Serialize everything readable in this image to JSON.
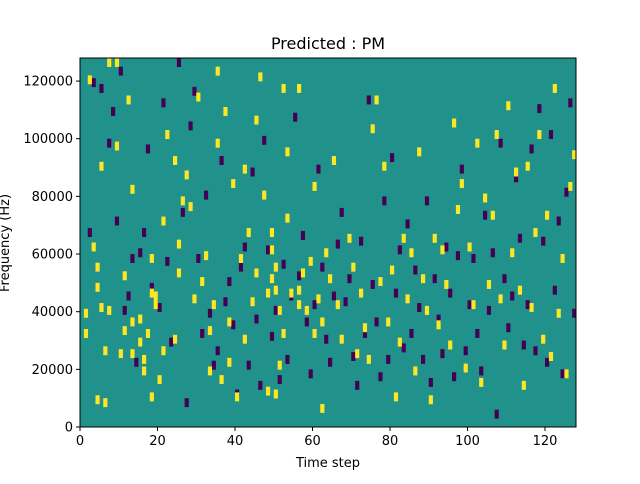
{
  "chart_data": {
    "type": "heatmap",
    "title": "Predicted : PM",
    "xlabel": "Time step",
    "ylabel": "Frequency (Hz)",
    "xlim": [
      0,
      128
    ],
    "ylim": [
      0,
      128000
    ],
    "x_ticks": [
      0,
      20,
      40,
      60,
      80,
      100,
      120
    ],
    "y_ticks": [
      0,
      20000,
      40000,
      60000,
      80000,
      100000,
      120000
    ],
    "x_tick_labels": [
      "0",
      "20",
      "40",
      "60",
      "80",
      "100",
      "120"
    ],
    "y_tick_labels": [
      "0",
      "20000",
      "40000",
      "60000",
      "80000",
      "100000",
      "120000"
    ],
    "grid": false,
    "value_levels": [
      -1,
      0,
      1
    ],
    "colors": {
      "background": "#21918c",
      "low": "#440154",
      "high": "#fde725"
    },
    "note_cells_high": [
      [
        1,
        33
      ],
      [
        1,
        40
      ],
      [
        2,
        121
      ],
      [
        3,
        63
      ],
      [
        4,
        56
      ],
      [
        4,
        49
      ],
      [
        4,
        10
      ],
      [
        5,
        42
      ],
      [
        5,
        91
      ],
      [
        6,
        27
      ],
      [
        6,
        9
      ],
      [
        7,
        41
      ],
      [
        7,
        127
      ],
      [
        9,
        127
      ],
      [
        9,
        98
      ],
      [
        10,
        26
      ],
      [
        11,
        53
      ],
      [
        11,
        34
      ],
      [
        12,
        114
      ],
      [
        13,
        26
      ],
      [
        13,
        83
      ],
      [
        13,
        37
      ],
      [
        15,
        30
      ],
      [
        15,
        38
      ],
      [
        16,
        24
      ],
      [
        16,
        20
      ],
      [
        17,
        33
      ],
      [
        18,
        47
      ],
      [
        18,
        59
      ],
      [
        18,
        11
      ],
      [
        19,
        43
      ],
      [
        19,
        46
      ],
      [
        20,
        17
      ],
      [
        21,
        72
      ],
      [
        21,
        27
      ],
      [
        22,
        102
      ],
      [
        24,
        93
      ],
      [
        24,
        31
      ],
      [
        25,
        54
      ],
      [
        25,
        64
      ],
      [
        26,
        79
      ],
      [
        27,
        88
      ],
      [
        28,
        77
      ],
      [
        29,
        45
      ],
      [
        30,
        115
      ],
      [
        31,
        51
      ],
      [
        32,
        60
      ],
      [
        33,
        34
      ],
      [
        33,
        20
      ],
      [
        34,
        43
      ],
      [
        35,
        124
      ],
      [
        35,
        99
      ],
      [
        36,
        17
      ],
      [
        37,
        110
      ],
      [
        38,
        37
      ],
      [
        38,
        23
      ],
      [
        39,
        85
      ],
      [
        40,
        11
      ],
      [
        41,
        59
      ],
      [
        42,
        90
      ],
      [
        42,
        31
      ],
      [
        43,
        68
      ],
      [
        44,
        44
      ],
      [
        45,
        54
      ],
      [
        45,
        107
      ],
      [
        46,
        122
      ],
      [
        47,
        81
      ],
      [
        48,
        47
      ],
      [
        48,
        13
      ],
      [
        49,
        62
      ],
      [
        49,
        52
      ],
      [
        49,
        68
      ],
      [
        50,
        56
      ],
      [
        50,
        48
      ],
      [
        50,
        12
      ],
      [
        51,
        41
      ],
      [
        51,
        22
      ],
      [
        52,
        33
      ],
      [
        52,
        118
      ],
      [
        53,
        73
      ],
      [
        53,
        96
      ],
      [
        54,
        47
      ],
      [
        56,
        48
      ],
      [
        56,
        43
      ],
      [
        56,
        118
      ],
      [
        57,
        54
      ],
      [
        58,
        41
      ],
      [
        59,
        58
      ],
      [
        60,
        84
      ],
      [
        60,
        33
      ],
      [
        61,
        45
      ],
      [
        62,
        37
      ],
      [
        62,
        7
      ],
      [
        63,
        61
      ],
      [
        64,
        52
      ],
      [
        65,
        93
      ],
      [
        66,
        43
      ],
      [
        67,
        31
      ],
      [
        69,
        66
      ],
      [
        70,
        56
      ],
      [
        71,
        26
      ],
      [
        72,
        47
      ],
      [
        73,
        35
      ],
      [
        74,
        24
      ],
      [
        75,
        104
      ],
      [
        76,
        114
      ],
      [
        77,
        51
      ],
      [
        78,
        91
      ],
      [
        79,
        37
      ],
      [
        80,
        55
      ],
      [
        81,
        11
      ],
      [
        82,
        30
      ],
      [
        83,
        66
      ],
      [
        84,
        45
      ],
      [
        85,
        61
      ],
      [
        86,
        20
      ],
      [
        87,
        96
      ],
      [
        88,
        52
      ],
      [
        89,
        41
      ],
      [
        90,
        10
      ],
      [
        91,
        66
      ],
      [
        92,
        36
      ],
      [
        93,
        62
      ],
      [
        94,
        50
      ],
      [
        95,
        29
      ],
      [
        96,
        106
      ],
      [
        97,
        76
      ],
      [
        98,
        85
      ],
      [
        99,
        21
      ],
      [
        100,
        63
      ],
      [
        101,
        43
      ],
      [
        102,
        99
      ],
      [
        103,
        16
      ],
      [
        104,
        80
      ],
      [
        105,
        50
      ],
      [
        106,
        74
      ],
      [
        107,
        102
      ],
      [
        108,
        45
      ],
      [
        109,
        29
      ],
      [
        110,
        112
      ],
      [
        111,
        61
      ],
      [
        112,
        89
      ],
      [
        113,
        48
      ],
      [
        114,
        15
      ],
      [
        115,
        91
      ],
      [
        116,
        42
      ],
      [
        117,
        68
      ],
      [
        118,
        102
      ],
      [
        119,
        31
      ],
      [
        120,
        74
      ],
      [
        121,
        25
      ],
      [
        122,
        118
      ],
      [
        123,
        40
      ],
      [
        124,
        59
      ],
      [
        125,
        19
      ],
      [
        126,
        84
      ],
      [
        127,
        95
      ]
    ],
    "note_cells_low": [
      [
        2,
        68
      ],
      [
        3,
        120
      ],
      [
        5,
        118
      ],
      [
        7,
        99
      ],
      [
        8,
        110
      ],
      [
        9,
        72
      ],
      [
        10,
        124
      ],
      [
        11,
        41
      ],
      [
        12,
        46
      ],
      [
        13,
        59
      ],
      [
        14,
        23
      ],
      [
        15,
        61
      ],
      [
        16,
        68
      ],
      [
        17,
        97
      ],
      [
        18,
        49
      ],
      [
        19,
        44
      ],
      [
        20,
        42
      ],
      [
        21,
        113
      ],
      [
        22,
        58
      ],
      [
        23,
        30
      ],
      [
        24,
        31
      ],
      [
        25,
        127
      ],
      [
        26,
        75
      ],
      [
        27,
        9
      ],
      [
        28,
        105
      ],
      [
        29,
        117
      ],
      [
        30,
        59
      ],
      [
        31,
        33
      ],
      [
        32,
        81
      ],
      [
        33,
        40
      ],
      [
        34,
        22
      ],
      [
        35,
        27
      ],
      [
        36,
        93
      ],
      [
        37,
        44
      ],
      [
        38,
        51
      ],
      [
        39,
        36
      ],
      [
        40,
        12
      ],
      [
        41,
        56
      ],
      [
        42,
        63
      ],
      [
        43,
        22
      ],
      [
        44,
        89
      ],
      [
        45,
        38
      ],
      [
        46,
        15
      ],
      [
        47,
        100
      ],
      [
        48,
        62
      ],
      [
        49,
        32
      ],
      [
        50,
        41
      ],
      [
        51,
        17
      ],
      [
        52,
        57
      ],
      [
        53,
        24
      ],
      [
        54,
        46
      ],
      [
        55,
        108
      ],
      [
        56,
        53
      ],
      [
        57,
        67
      ],
      [
        58,
        37
      ],
      [
        59,
        19
      ],
      [
        60,
        43
      ],
      [
        61,
        90
      ],
      [
        62,
        56
      ],
      [
        63,
        31
      ],
      [
        64,
        23
      ],
      [
        65,
        46
      ],
      [
        66,
        64
      ],
      [
        67,
        75
      ],
      [
        68,
        44
      ],
      [
        69,
        52
      ],
      [
        70,
        25
      ],
      [
        71,
        15
      ],
      [
        72,
        65
      ],
      [
        73,
        33
      ],
      [
        74,
        114
      ],
      [
        75,
        50
      ],
      [
        76,
        37
      ],
      [
        77,
        18
      ],
      [
        78,
        79
      ],
      [
        79,
        24
      ],
      [
        80,
        94
      ],
      [
        81,
        47
      ],
      [
        82,
        62
      ],
      [
        83,
        28
      ],
      [
        84,
        71
      ],
      [
        85,
        33
      ],
      [
        86,
        55
      ],
      [
        87,
        42
      ],
      [
        88,
        24
      ],
      [
        89,
        79
      ],
      [
        90,
        16
      ],
      [
        91,
        52
      ],
      [
        92,
        38
      ],
      [
        93,
        26
      ],
      [
        94,
        63
      ],
      [
        95,
        47
      ],
      [
        96,
        18
      ],
      [
        97,
        60
      ],
      [
        98,
        90
      ],
      [
        99,
        27
      ],
      [
        100,
        43
      ],
      [
        101,
        59
      ],
      [
        102,
        33
      ],
      [
        103,
        20
      ],
      [
        104,
        74
      ],
      [
        105,
        41
      ],
      [
        106,
        61
      ],
      [
        107,
        5
      ],
      [
        108,
        99
      ],
      [
        109,
        52
      ],
      [
        110,
        35
      ],
      [
        111,
        46
      ],
      [
        112,
        87
      ],
      [
        113,
        66
      ],
      [
        114,
        29
      ],
      [
        115,
        43
      ],
      [
        116,
        97
      ],
      [
        117,
        27
      ],
      [
        118,
        111
      ],
      [
        119,
        65
      ],
      [
        120,
        23
      ],
      [
        121,
        102
      ],
      [
        122,
        48
      ],
      [
        123,
        72
      ],
      [
        124,
        19
      ],
      [
        125,
        82
      ],
      [
        126,
        113
      ],
      [
        127,
        40
      ]
    ]
  }
}
